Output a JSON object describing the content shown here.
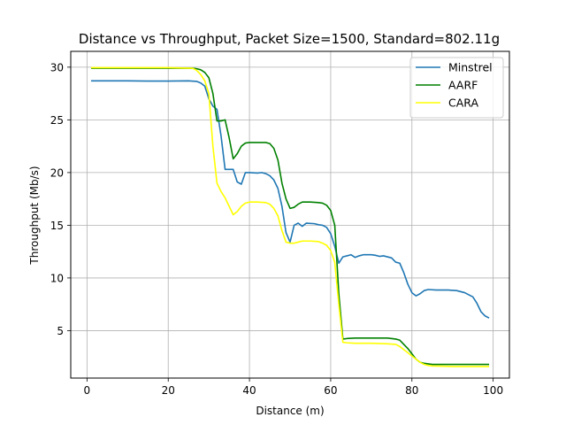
{
  "chart_data": {
    "type": "line",
    "title": "Distance vs Throughput, Packet Size=1500, Standard=802.11g",
    "xlabel": "Distance (m)",
    "ylabel": "Throughput (Mb/s)",
    "xlim": [
      -4,
      104
    ],
    "ylim": [
      0.5,
      31.5
    ],
    "xticks": [
      0,
      20,
      40,
      60,
      80,
      100
    ],
    "yticks": [
      5,
      10,
      15,
      20,
      25,
      30
    ],
    "grid": true,
    "legend_position": "top-right",
    "series": [
      {
        "name": "Minstrel",
        "color": "#1f77b4",
        "points": [
          [
            1,
            28.7
          ],
          [
            5,
            28.7
          ],
          [
            10,
            28.7
          ],
          [
            15,
            28.68
          ],
          [
            20,
            28.68
          ],
          [
            25,
            28.7
          ],
          [
            27,
            28.65
          ],
          [
            28,
            28.5
          ],
          [
            29,
            28.2
          ],
          [
            30,
            27.0
          ],
          [
            31,
            26.3
          ],
          [
            32,
            26.0
          ],
          [
            33,
            23.5
          ],
          [
            34,
            20.3
          ],
          [
            35,
            20.3
          ],
          [
            36,
            20.3
          ],
          [
            37,
            19.1
          ],
          [
            38,
            18.9
          ],
          [
            39,
            20.0
          ],
          [
            40,
            20.0
          ],
          [
            42,
            19.95
          ],
          [
            43,
            20.0
          ],
          [
            44,
            19.9
          ],
          [
            45,
            19.7
          ],
          [
            46,
            19.3
          ],
          [
            47,
            18.5
          ],
          [
            48,
            16.8
          ],
          [
            49,
            14.3
          ],
          [
            50,
            13.4
          ],
          [
            51,
            15.0
          ],
          [
            52,
            15.2
          ],
          [
            53,
            14.9
          ],
          [
            54,
            15.2
          ],
          [
            56,
            15.15
          ],
          [
            57,
            15.05
          ],
          [
            58,
            15.0
          ],
          [
            59,
            14.8
          ],
          [
            60,
            14.2
          ],
          [
            61,
            13.0
          ],
          [
            62,
            11.4
          ],
          [
            63,
            12.0
          ],
          [
            64,
            12.1
          ],
          [
            65,
            12.2
          ],
          [
            66,
            11.95
          ],
          [
            67,
            12.1
          ],
          [
            68,
            12.2
          ],
          [
            70,
            12.2
          ],
          [
            71,
            12.15
          ],
          [
            72,
            12.05
          ],
          [
            73,
            12.1
          ],
          [
            75,
            11.9
          ],
          [
            76,
            11.5
          ],
          [
            77,
            11.4
          ],
          [
            78,
            10.5
          ],
          [
            79,
            9.4
          ],
          [
            80,
            8.6
          ],
          [
            81,
            8.3
          ],
          [
            82,
            8.5
          ],
          [
            83,
            8.8
          ],
          [
            84,
            8.9
          ],
          [
            86,
            8.85
          ],
          [
            89,
            8.85
          ],
          [
            91,
            8.8
          ],
          [
            93,
            8.6
          ],
          [
            95,
            8.2
          ],
          [
            96,
            7.6
          ],
          [
            97,
            6.8
          ],
          [
            98,
            6.4
          ],
          [
            99,
            6.2
          ]
        ]
      },
      {
        "name": "AARF",
        "color": "#008000",
        "points": [
          [
            1,
            29.9
          ],
          [
            5,
            29.9
          ],
          [
            10,
            29.9
          ],
          [
            15,
            29.9
          ],
          [
            20,
            29.9
          ],
          [
            26,
            29.9
          ],
          [
            27,
            29.85
          ],
          [
            28,
            29.75
          ],
          [
            29,
            29.5
          ],
          [
            30,
            29.0
          ],
          [
            31,
            27.5
          ],
          [
            32,
            24.9
          ],
          [
            33,
            24.9
          ],
          [
            34,
            25.0
          ],
          [
            35,
            23.3
          ],
          [
            36,
            21.3
          ],
          [
            37,
            21.8
          ],
          [
            38,
            22.5
          ],
          [
            39,
            22.8
          ],
          [
            40,
            22.85
          ],
          [
            42,
            22.85
          ],
          [
            44,
            22.85
          ],
          [
            45,
            22.75
          ],
          [
            46,
            22.3
          ],
          [
            47,
            21.2
          ],
          [
            48,
            19.0
          ],
          [
            49,
            17.5
          ],
          [
            50,
            16.6
          ],
          [
            51,
            16.7
          ],
          [
            52,
            17.0
          ],
          [
            53,
            17.2
          ],
          [
            55,
            17.2
          ],
          [
            57,
            17.15
          ],
          [
            58,
            17.1
          ],
          [
            59,
            16.9
          ],
          [
            60,
            16.4
          ],
          [
            61,
            15.0
          ],
          [
            62,
            8.5
          ],
          [
            63,
            4.2
          ],
          [
            64,
            4.25
          ],
          [
            66,
            4.3
          ],
          [
            70,
            4.3
          ],
          [
            74,
            4.3
          ],
          [
            76,
            4.2
          ],
          [
            77,
            4.1
          ],
          [
            78,
            3.7
          ],
          [
            79,
            3.3
          ],
          [
            80,
            2.8
          ],
          [
            81,
            2.3
          ],
          [
            82,
            2.0
          ],
          [
            83,
            1.9
          ],
          [
            84,
            1.85
          ],
          [
            85,
            1.8
          ],
          [
            90,
            1.8
          ],
          [
            95,
            1.8
          ],
          [
            99,
            1.8
          ]
        ]
      },
      {
        "name": "CARA",
        "color": "#ffff00",
        "points": [
          [
            1,
            29.95
          ],
          [
            5,
            29.95
          ],
          [
            10,
            29.95
          ],
          [
            15,
            29.95
          ],
          [
            20,
            29.95
          ],
          [
            26,
            29.9
          ],
          [
            27,
            29.7
          ],
          [
            28,
            29.3
          ],
          [
            29,
            28.7
          ],
          [
            30,
            27.5
          ],
          [
            31,
            22.5
          ],
          [
            32,
            19.0
          ],
          [
            33,
            18.2
          ],
          [
            34,
            17.6
          ],
          [
            35,
            16.8
          ],
          [
            36,
            16.0
          ],
          [
            37,
            16.3
          ],
          [
            38,
            16.8
          ],
          [
            39,
            17.1
          ],
          [
            40,
            17.2
          ],
          [
            42,
            17.2
          ],
          [
            44,
            17.15
          ],
          [
            45,
            17.0
          ],
          [
            46,
            16.6
          ],
          [
            47,
            15.9
          ],
          [
            48,
            14.5
          ],
          [
            49,
            13.4
          ],
          [
            50,
            13.3
          ],
          [
            51,
            13.3
          ],
          [
            52,
            13.4
          ],
          [
            53,
            13.5
          ],
          [
            55,
            13.5
          ],
          [
            57,
            13.45
          ],
          [
            58,
            13.3
          ],
          [
            59,
            13.1
          ],
          [
            60,
            12.6
          ],
          [
            61,
            11.5
          ],
          [
            62,
            7.5
          ],
          [
            63,
            3.9
          ],
          [
            64,
            3.85
          ],
          [
            66,
            3.8
          ],
          [
            70,
            3.8
          ],
          [
            74,
            3.75
          ],
          [
            76,
            3.7
          ],
          [
            77,
            3.5
          ],
          [
            78,
            3.2
          ],
          [
            79,
            2.9
          ],
          [
            80,
            2.6
          ],
          [
            81,
            2.3
          ],
          [
            82,
            2.0
          ],
          [
            83,
            1.8
          ],
          [
            84,
            1.7
          ],
          [
            85,
            1.65
          ],
          [
            90,
            1.6
          ],
          [
            95,
            1.6
          ],
          [
            99,
            1.6
          ]
        ]
      }
    ]
  }
}
